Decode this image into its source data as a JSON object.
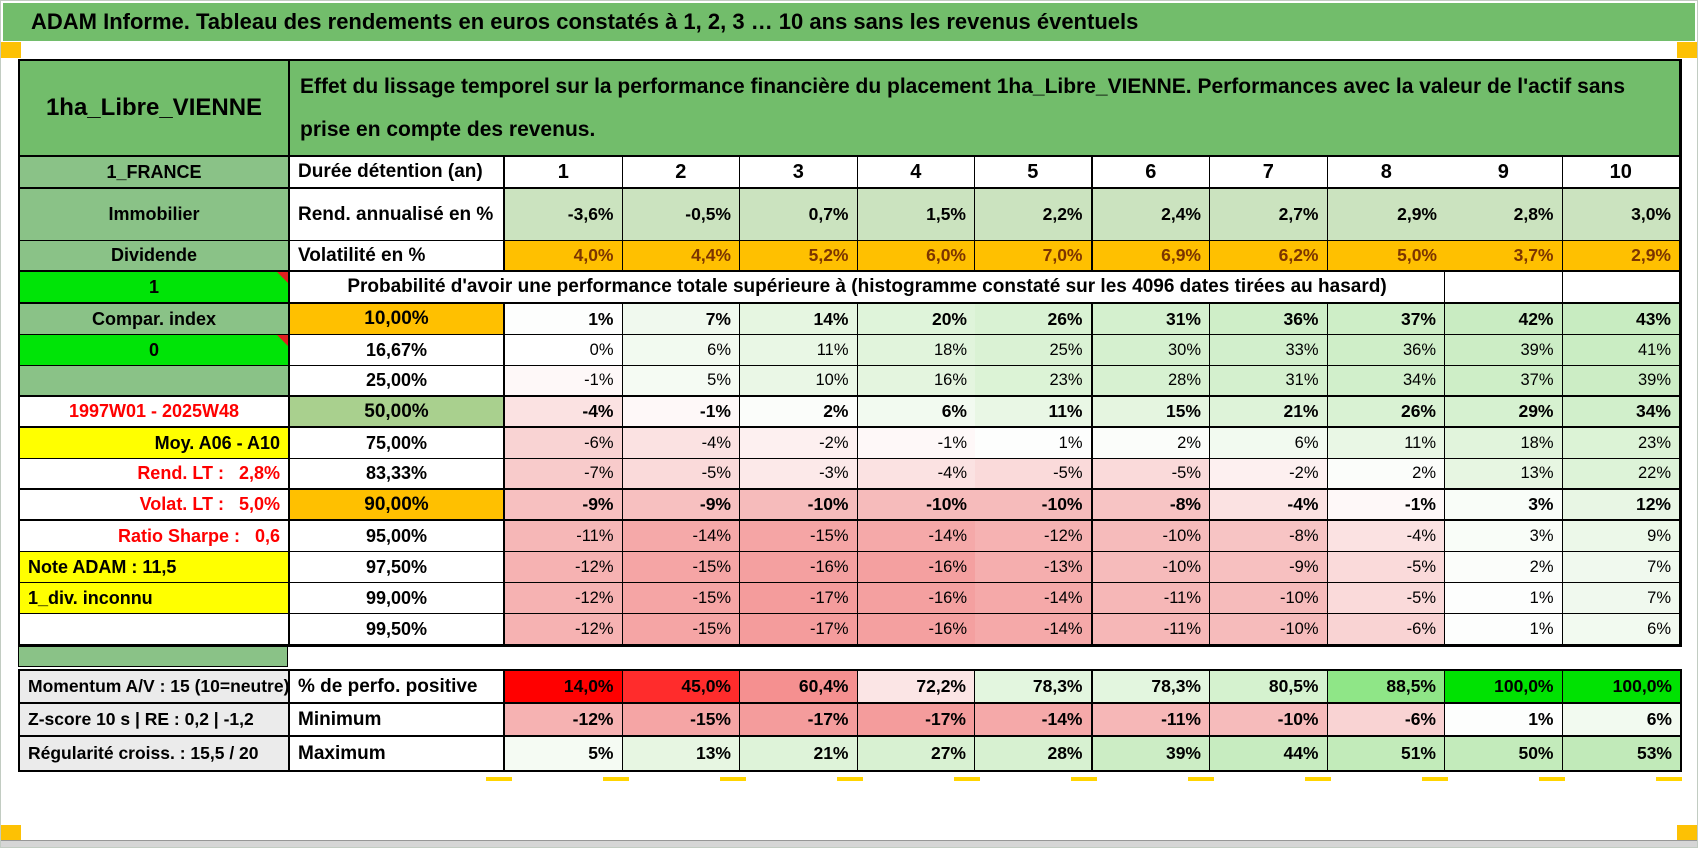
{
  "banner": {
    "title": "ADAM Informe. Tableau des rendements en euros constatés à 1, 2, 3 … 10 ans sans les revenus éventuels"
  },
  "header": {
    "asset_name": "1ha_Libre_VIENNE",
    "description": "Effet du lissage temporel sur la performance financière du placement 1ha_Libre_VIENNE. Performances avec la valeur de l'actif sans prise en compte des revenus."
  },
  "left_column": {
    "rows": [
      {
        "text": "1_FRANCE",
        "style": "green"
      },
      {
        "text": "Immobilier",
        "style": "green"
      },
      {
        "text": "Dividende",
        "style": "green"
      },
      {
        "text": "1",
        "style": "bright"
      },
      {
        "text": "Compar. index",
        "style": "green"
      },
      {
        "text": "0",
        "style": "bright"
      },
      {
        "text": "",
        "style": "green"
      },
      {
        "text": "1997W01 - 2025W48",
        "style": "red-center"
      },
      {
        "text": "Moy. A06 - A10",
        "style": "yellow-right"
      },
      {
        "text": "Rend. LT :   2,8%",
        "style": "red-right"
      },
      {
        "text": "Volat. LT :   5,0%",
        "style": "red-right"
      },
      {
        "text": "Ratio Sharpe :   0,6",
        "style": "red-right"
      },
      {
        "text": "Note ADAM : 11,5",
        "style": "yellow-left"
      },
      {
        "text": "1_div. inconnu",
        "style": "yellow-left"
      },
      {
        "text": "",
        "style": "white"
      }
    ]
  },
  "table": {
    "duration_label": "Durée détention (an)",
    "durations": [
      "1",
      "2",
      "3",
      "4",
      "5",
      "6",
      "7",
      "8",
      "9",
      "10"
    ],
    "annualized_return_label": "Rend. annualisé en %",
    "annualized_return": [
      "-3,6%",
      "-0,5%",
      "0,7%",
      "1,5%",
      "2,2%",
      "2,4%",
      "2,7%",
      "2,9%",
      "2,8%",
      "3,0%"
    ],
    "volatility_label": "Volatilité en %",
    "volatility": [
      "4,0%",
      "4,4%",
      "5,2%",
      "6,0%",
      "7,0%",
      "6,9%",
      "6,2%",
      "5,0%",
      "3,7%",
      "2,9%"
    ],
    "probability_header": "Probabilité d'avoir une performance totale supérieure à (histogramme constaté sur les 4096 dates tirées au hasard)",
    "probability_rows": [
      {
        "label": "10,00%",
        "highlight": "orange",
        "bold": true,
        "values": [
          "1%",
          "7%",
          "14%",
          "20%",
          "26%",
          "31%",
          "36%",
          "37%",
          "42%",
          "43%"
        ]
      },
      {
        "label": "16,67%",
        "highlight": null,
        "bold": false,
        "values": [
          "0%",
          "6%",
          "11%",
          "18%",
          "25%",
          "30%",
          "33%",
          "36%",
          "39%",
          "41%"
        ]
      },
      {
        "label": "25,00%",
        "highlight": null,
        "bold": false,
        "values": [
          "-1%",
          "5%",
          "10%",
          "16%",
          "23%",
          "28%",
          "31%",
          "34%",
          "37%",
          "39%"
        ]
      },
      {
        "label": "50,00%",
        "highlight": "green",
        "bold": true,
        "values": [
          "-4%",
          "-1%",
          "2%",
          "6%",
          "11%",
          "15%",
          "21%",
          "26%",
          "29%",
          "34%"
        ]
      },
      {
        "label": "75,00%",
        "highlight": null,
        "bold": false,
        "values": [
          "-6%",
          "-4%",
          "-2%",
          "-1%",
          "1%",
          "2%",
          "6%",
          "11%",
          "18%",
          "23%"
        ]
      },
      {
        "label": "83,33%",
        "highlight": null,
        "bold": false,
        "values": [
          "-7%",
          "-5%",
          "-3%",
          "-4%",
          "-5%",
          "-5%",
          "-2%",
          "2%",
          "13%",
          "22%"
        ]
      },
      {
        "label": "90,00%",
        "highlight": "orange",
        "bold": true,
        "values": [
          "-9%",
          "-9%",
          "-10%",
          "-10%",
          "-10%",
          "-8%",
          "-4%",
          "-1%",
          "3%",
          "12%"
        ]
      },
      {
        "label": "95,00%",
        "highlight": null,
        "bold": false,
        "values": [
          "-11%",
          "-14%",
          "-15%",
          "-14%",
          "-12%",
          "-10%",
          "-8%",
          "-4%",
          "3%",
          "9%"
        ]
      },
      {
        "label": "97,50%",
        "highlight": null,
        "bold": false,
        "values": [
          "-12%",
          "-15%",
          "-16%",
          "-16%",
          "-13%",
          "-10%",
          "-9%",
          "-5%",
          "2%",
          "7%"
        ]
      },
      {
        "label": "99,00%",
        "highlight": null,
        "bold": false,
        "values": [
          "-12%",
          "-15%",
          "-17%",
          "-16%",
          "-14%",
          "-11%",
          "-10%",
          "-5%",
          "1%",
          "7%"
        ]
      },
      {
        "label": "99,50%",
        "highlight": null,
        "bold": false,
        "values": [
          "-12%",
          "-15%",
          "-17%",
          "-16%",
          "-14%",
          "-11%",
          "-10%",
          "-6%",
          "1%",
          "6%"
        ]
      }
    ]
  },
  "bottom": {
    "rows": [
      {
        "label": "Momentum A/V : 15 (10=neutre)",
        "name": "% de perfo. positive",
        "scale": "perfo",
        "values": [
          "14,0%",
          "45,0%",
          "60,4%",
          "72,2%",
          "78,3%",
          "78,3%",
          "80,5%",
          "88,5%",
          "100,0%",
          "100,0%"
        ]
      },
      {
        "label": "Z-score 10 s | RE : 0,2 | -1,2",
        "name": "Minimum",
        "scale": "grid",
        "values": [
          "-12%",
          "-15%",
          "-17%",
          "-17%",
          "-14%",
          "-11%",
          "-10%",
          "-6%",
          "1%",
          "6%"
        ]
      },
      {
        "label": "Régularité croiss. : 15,5 / 20",
        "name": "Maximum",
        "scale": "grid",
        "values": [
          "5%",
          "13%",
          "21%",
          "27%",
          "28%",
          "39%",
          "44%",
          "51%",
          "50%",
          "53%"
        ]
      }
    ]
  },
  "colors": {
    "banner_green": "#72bd6b",
    "label_green": "#8ac287",
    "bright_green": "#00e407",
    "orange": "#ffc000",
    "yellow": "#ffff00",
    "median_green": "#a9d08e",
    "return_row_green": "#cbe3bf",
    "gray_label": "#ebebeb",
    "red_text": "#fe0000",
    "volatility_text": "#7c3500",
    "marker_yellow": "#fdc104",
    "scales": {
      "grid": [
        [
          -17,
          "#f49c9c"
        ],
        [
          -8,
          "#f7c4c4"
        ],
        [
          0,
          "#ffffff"
        ],
        [
          10,
          "#eaf7e6"
        ],
        [
          25,
          "#daf2d4"
        ],
        [
          43,
          "#c8ecc1"
        ],
        [
          55,
          "#bfeab7"
        ]
      ],
      "perfo": [
        [
          14,
          "#ff0000"
        ],
        [
          48,
          "#ff3030"
        ],
        [
          62,
          "#f49c9c"
        ],
        [
          72,
          "#fbe3e3"
        ],
        [
          75,
          "#ffffff"
        ],
        [
          79,
          "#ddf4d8"
        ],
        [
          82,
          "#cdefc6"
        ],
        [
          89,
          "#8ae582"
        ],
        [
          96,
          "#2ede2e"
        ],
        [
          100,
          "#00e202"
        ]
      ]
    }
  }
}
